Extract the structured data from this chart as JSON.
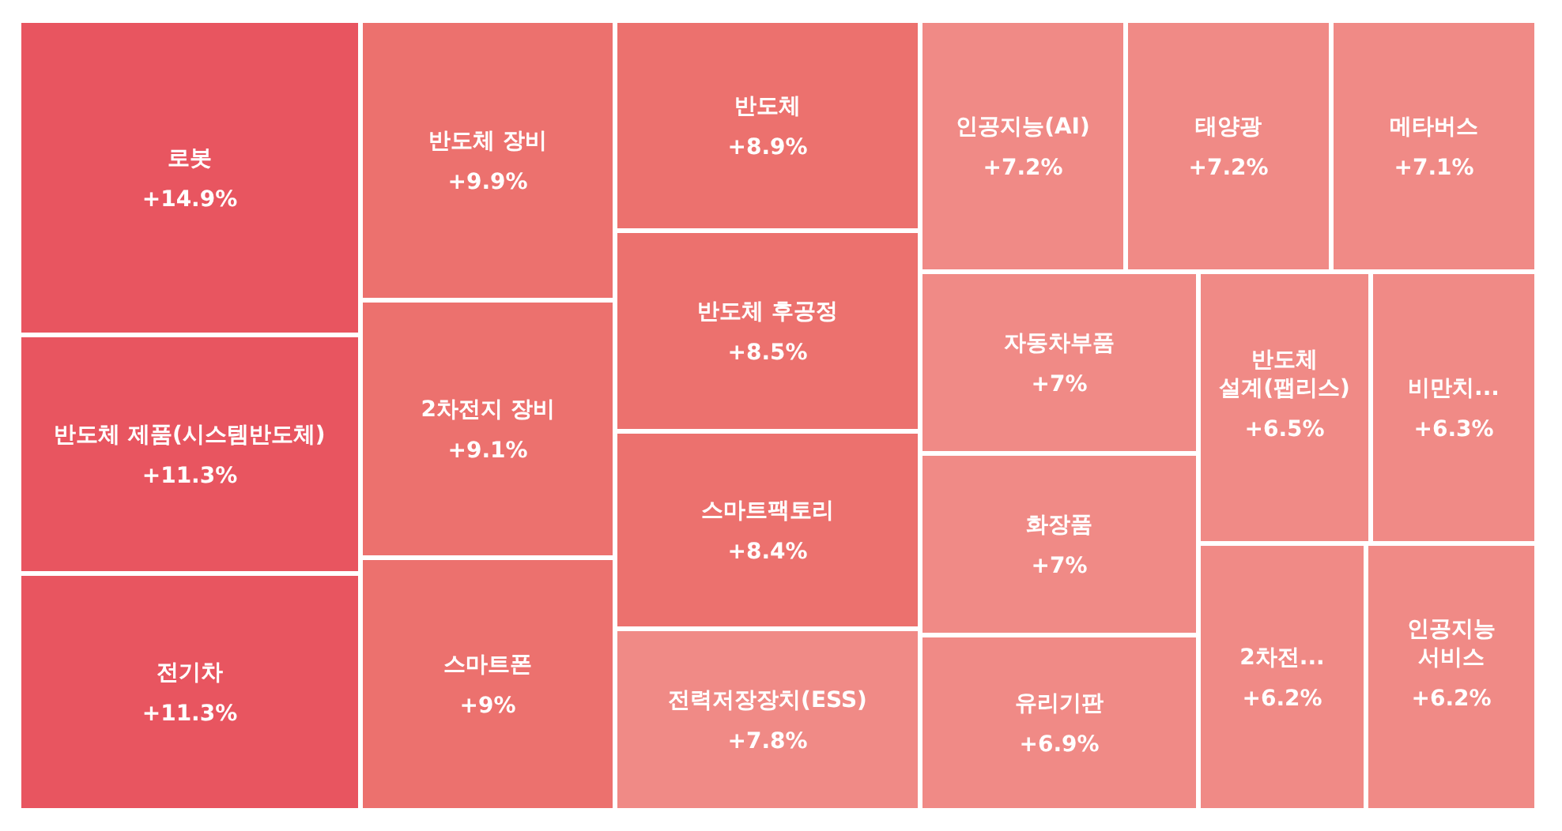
{
  "chart_data": {
    "type": "other",
    "categories": [
      "로봇",
      "반도체 제품(시스템반도체)",
      "전기차",
      "반도체 장비",
      "2차전지 장비",
      "스마트폰",
      "반도체",
      "반도체 후공정",
      "스마트팩토리",
      "전력저장장치(ESS)",
      "인공지능(AI)",
      "태양광",
      "메타버스",
      "자동차부품",
      "화장품",
      "유리기판",
      "반도체 설계(팹리스)",
      "비만치...",
      "2차전...",
      "인공지능 서비스"
    ],
    "values": [
      14.9,
      11.3,
      11.3,
      9.9,
      9.1,
      9,
      8.9,
      8.5,
      8.4,
      7.8,
      7.2,
      7.2,
      7.1,
      7,
      7,
      6.9,
      6.5,
      6.3,
      6.2,
      6.2
    ],
    "value_labels": [
      "+14.9%",
      "+11.3%",
      "+11.3%",
      "+9.9%",
      "+9.1%",
      "+9%",
      "+8.9%",
      "+8.5%",
      "+8.4%",
      "+7.8%",
      "+7.2%",
      "+7.2%",
      "+7.1%",
      "+7%",
      "+7%",
      "+6.9%",
      "+6.5%",
      "+6.3%",
      "+6.2%",
      "+6.2%"
    ],
    "colors": [
      "#e85560",
      "#e85560",
      "#e85560",
      "#ec716e",
      "#ec716e",
      "#ec716e",
      "#ec716e",
      "#ec716e",
      "#ec716e",
      "#f08a86",
      "#f08a86",
      "#f08a86",
      "#f08a86",
      "#f08a86",
      "#f08a86",
      "#f08a86",
      "#f08a86",
      "#f08a86",
      "#f08a86",
      "#f08a86"
    ]
  }
}
